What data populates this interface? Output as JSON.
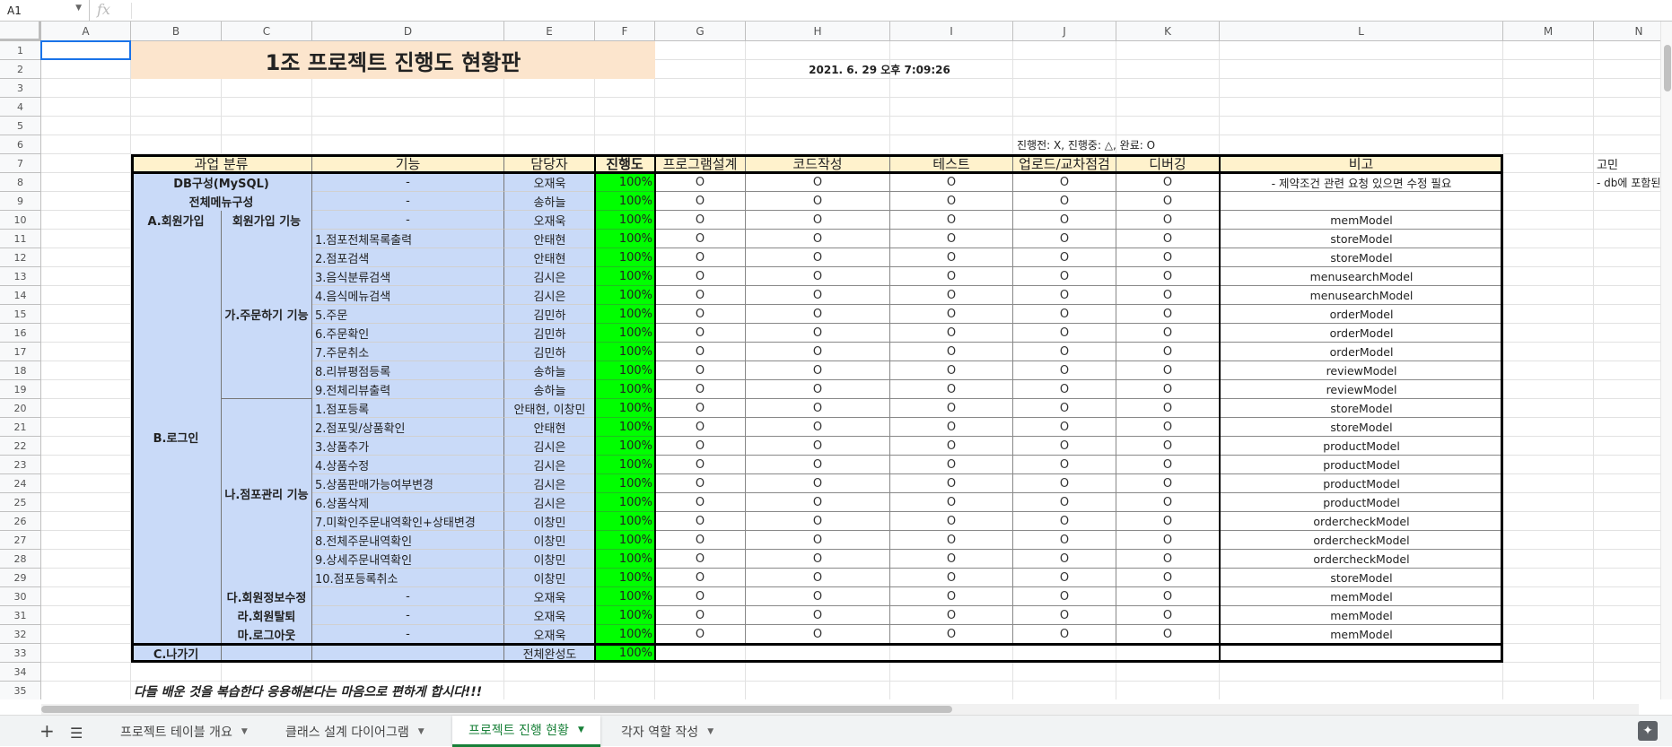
{
  "formula_bar": {
    "cell_ref": "A1",
    "fx_symbol": "fx"
  },
  "columns": [
    "A",
    "B",
    "C",
    "D",
    "E",
    "F",
    "G",
    "H",
    "I",
    "J",
    "K",
    "L",
    "M",
    "N"
  ],
  "row_numbers": [
    "1",
    "2",
    "3",
    "4",
    "5",
    "6",
    "7",
    "8",
    "9",
    "10",
    "11",
    "12",
    "13",
    "14",
    "15",
    "16",
    "17",
    "18",
    "19",
    "20",
    "21",
    "22",
    "23",
    "24",
    "25",
    "26",
    "27",
    "28",
    "29",
    "30",
    "31",
    "32",
    "33",
    "34",
    "35"
  ],
  "sheet": {
    "title": "1조 프로젝트 진행도 현황판",
    "timestamp": "2021. 6. 29 오후 7:09:26",
    "legend": "진행전: X, 진행중: △, 완료: O",
    "side_note_header": "고민",
    "side_note_text": "- db에 포함된",
    "headers": [
      "과업 분류",
      "기능",
      "담당자",
      "진행도",
      "프로그램설계",
      "코드작성",
      "테스트",
      "업로드/교차점검",
      "디버깅",
      "비고"
    ],
    "cat_b": "B.로그인",
    "cat_c": "C.나가기",
    "sub_ga": "가.주문하기 기능",
    "sub_na": "나.점포관리 기능",
    "rows": [
      {
        "a": "DB구성(MySQL)",
        "func": "-",
        "owner": "오재욱",
        "prog": "100%",
        "status": [
          "O",
          "O",
          "O",
          "O",
          "O"
        ],
        "note": "- 제약조건 관련 요청 있으면 수정 필요"
      },
      {
        "a": "전체메뉴구성",
        "func": "-",
        "owner": "송하늘",
        "prog": "100%",
        "status": [
          "O",
          "O",
          "O",
          "O",
          "O"
        ],
        "note": ""
      },
      {
        "a": "A.회원가입",
        "b": "회원가입 기능",
        "func": "-",
        "owner": "오재욱",
        "prog": "100%",
        "status": [
          "O",
          "O",
          "O",
          "O",
          "O"
        ],
        "note": "memModel"
      },
      {
        "func": "1.점포전체목록출력",
        "owner": "안태현",
        "prog": "100%",
        "status": [
          "O",
          "O",
          "O",
          "O",
          "O"
        ],
        "note": "storeModel"
      },
      {
        "func": "2.점포검색",
        "owner": "안태현",
        "prog": "100%",
        "status": [
          "O",
          "O",
          "O",
          "O",
          "O"
        ],
        "note": "storeModel"
      },
      {
        "func": "3.음식분류검색",
        "owner": "김시은",
        "prog": "100%",
        "status": [
          "O",
          "O",
          "O",
          "O",
          "O"
        ],
        "note": "menusearchModel"
      },
      {
        "func": "4.음식메뉴검색",
        "owner": "김시은",
        "prog": "100%",
        "status": [
          "O",
          "O",
          "O",
          "O",
          "O"
        ],
        "note": "menusearchModel"
      },
      {
        "func": "5.주문",
        "owner": "김민하",
        "prog": "100%",
        "status": [
          "O",
          "O",
          "O",
          "O",
          "O"
        ],
        "note": "orderModel"
      },
      {
        "func": "6.주문확인",
        "owner": "김민하",
        "prog": "100%",
        "status": [
          "O",
          "O",
          "O",
          "O",
          "O"
        ],
        "note": "orderModel"
      },
      {
        "func": "7.주문취소",
        "owner": "김민하",
        "prog": "100%",
        "status": [
          "O",
          "O",
          "O",
          "O",
          "O"
        ],
        "note": "orderModel"
      },
      {
        "func": "8.리뷰평점등록",
        "owner": "송하늘",
        "prog": "100%",
        "status": [
          "O",
          "O",
          "O",
          "O",
          "O"
        ],
        "note": "reviewModel"
      },
      {
        "func": "9.전체리뷰출력",
        "owner": "송하늘",
        "prog": "100%",
        "status": [
          "O",
          "O",
          "O",
          "O",
          "O"
        ],
        "note": "reviewModel"
      },
      {
        "func": "1.점포등록",
        "owner": "안태현, 이창민",
        "prog": "100%",
        "status": [
          "O",
          "O",
          "O",
          "O",
          "O"
        ],
        "note": "storeModel"
      },
      {
        "func": "2.점포및/상품확인",
        "owner": "안태현",
        "prog": "100%",
        "status": [
          "O",
          "O",
          "O",
          "O",
          "O"
        ],
        "note": "storeModel"
      },
      {
        "func": "3.상품추가",
        "owner": "김시은",
        "prog": "100%",
        "status": [
          "O",
          "O",
          "O",
          "O",
          "O"
        ],
        "note": "productModel"
      },
      {
        "func": "4.상품수정",
        "owner": "김시은",
        "prog": "100%",
        "status": [
          "O",
          "O",
          "O",
          "O",
          "O"
        ],
        "note": "productModel"
      },
      {
        "func": "5.상품판매가능여부변경",
        "owner": "김시은",
        "prog": "100%",
        "status": [
          "O",
          "O",
          "O",
          "O",
          "O"
        ],
        "note": "productModel"
      },
      {
        "func": "6.상품삭제",
        "owner": "김시은",
        "prog": "100%",
        "status": [
          "O",
          "O",
          "O",
          "O",
          "O"
        ],
        "note": "productModel"
      },
      {
        "func": "7.미확인주문내역확인+상태변경",
        "owner": "이창민",
        "prog": "100%",
        "status": [
          "O",
          "O",
          "O",
          "O",
          "O"
        ],
        "note": "ordercheckModel"
      },
      {
        "func": "8.전체주문내역확인",
        "owner": "이창민",
        "prog": "100%",
        "status": [
          "O",
          "O",
          "O",
          "O",
          "O"
        ],
        "note": "ordercheckModel"
      },
      {
        "func": "9.상세주문내역확인",
        "owner": "이창민",
        "prog": "100%",
        "status": [
          "O",
          "O",
          "O",
          "O",
          "O"
        ],
        "note": "ordercheckModel"
      },
      {
        "func": "10.점포등록취소",
        "owner": "이창민",
        "prog": "100%",
        "status": [
          "O",
          "O",
          "O",
          "O",
          "O"
        ],
        "note": "storeModel"
      },
      {
        "b": "다.회원정보수정",
        "func": "-",
        "owner": "오재욱",
        "prog": "100%",
        "status": [
          "O",
          "O",
          "O",
          "O",
          "O"
        ],
        "note": "memModel"
      },
      {
        "b": "라.회원탈퇴",
        "func": "-",
        "owner": "오재욱",
        "prog": "100%",
        "status": [
          "O",
          "O",
          "O",
          "O",
          "O"
        ],
        "note": "memModel"
      },
      {
        "b": "마.로그아웃",
        "func": "-",
        "owner": "오재욱",
        "prog": "100%",
        "status": [
          "O",
          "O",
          "O",
          "O",
          "O"
        ],
        "note": "memModel"
      }
    ],
    "total_label": "전체완성도",
    "total_value": "100%",
    "footer_text": "다들 배운 것을 복습한다 응용해본다는 마음으로 편하게 합시다!!!"
  },
  "tabs": [
    {
      "label": "프로젝트 테이블 개요"
    },
    {
      "label": "클래스 설계 다이어그램"
    },
    {
      "label": "프로젝트 진행 현황",
      "active": true
    },
    {
      "label": "각자 역할 작성"
    }
  ],
  "icons": {
    "add_sheet": "plus-icon",
    "all_sheets": "menu-icon",
    "explore": "explore-icon",
    "dropdown": "caret-down-icon"
  }
}
